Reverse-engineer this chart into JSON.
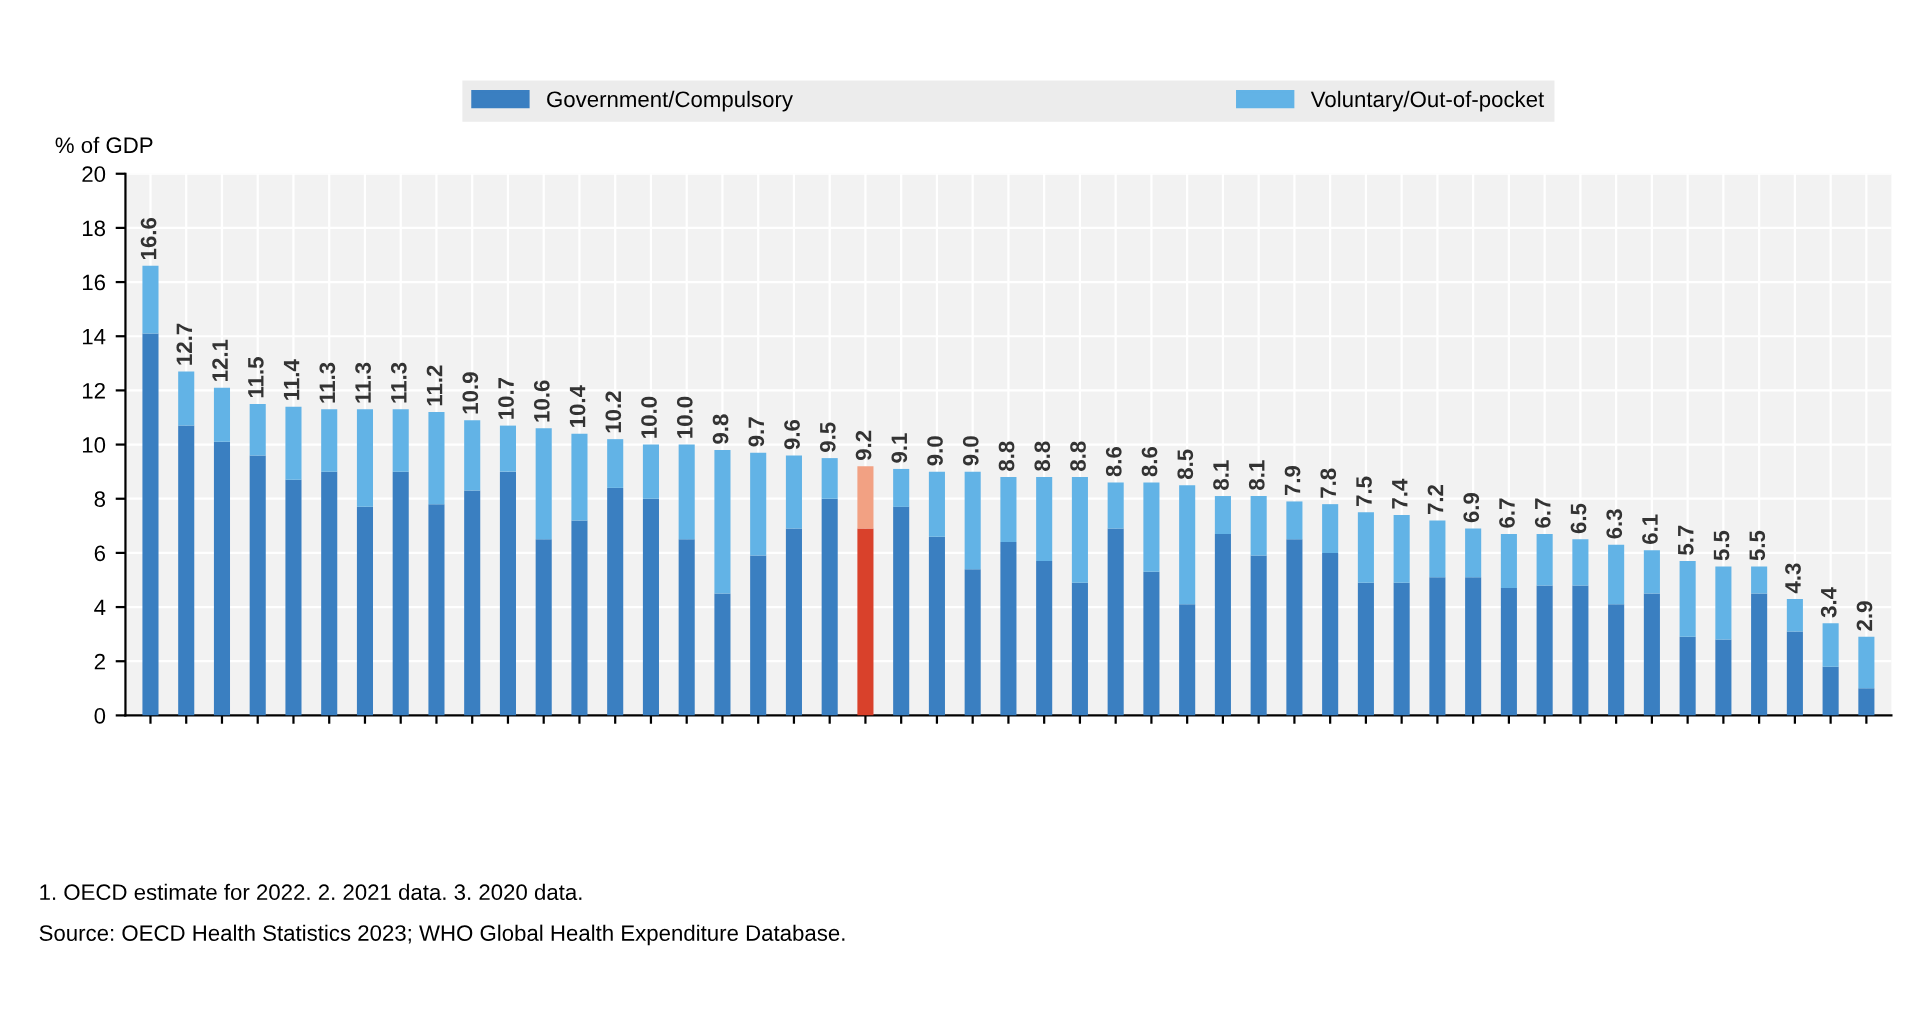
{
  "chart_data": {
    "type": "bar",
    "stacked": true,
    "ylabel": "% of GDP",
    "categories": [
      null,
      null,
      null,
      null,
      null,
      null,
      null,
      null,
      null,
      null,
      null,
      null,
      null,
      null,
      null,
      null,
      null,
      null,
      null,
      null,
      null,
      null,
      null,
      null,
      null,
      null,
      null,
      null,
      null,
      null,
      null,
      null,
      null,
      null,
      null,
      null,
      null,
      null,
      null,
      null,
      null,
      null,
      null,
      null,
      null,
      null,
      null,
      null,
      null
    ],
    "series": [
      {
        "name": "Government/Compulsory",
        "color": "#3a7fc1",
        "colors": [
          "#3a7fc1",
          "#3a7fc1",
          "#3a7fc1",
          "#3a7fc1",
          "#3a7fc1",
          "#3a7fc1",
          "#3a7fc1",
          "#3a7fc1",
          "#3a7fc1",
          "#3a7fc1",
          "#3a7fc1",
          "#3a7fc1",
          "#3a7fc1",
          "#3a7fc1",
          "#3a7fc1",
          "#3a7fc1",
          "#3a7fc1",
          "#3a7fc1",
          "#3a7fc1",
          "#3a7fc1",
          "#d9412b",
          "#3a7fc1",
          "#3a7fc1",
          "#3a7fc1",
          "#3a7fc1",
          "#3a7fc1",
          "#3a7fc1",
          "#3a7fc1",
          "#3a7fc1",
          "#3a7fc1",
          "#3a7fc1",
          "#3a7fc1",
          "#3a7fc1",
          "#3a7fc1",
          "#3a7fc1",
          "#3a7fc1",
          "#3a7fc1",
          "#3a7fc1",
          "#3a7fc1",
          "#3a7fc1",
          "#3a7fc1",
          "#3a7fc1",
          "#3a7fc1",
          "#3a7fc1",
          "#3a7fc1",
          "#3a7fc1",
          "#3a7fc1",
          "#3a7fc1",
          "#3a7fc1"
        ],
        "values": [
          14.1,
          10.7,
          10.1,
          9.6,
          8.7,
          9.0,
          7.7,
          9.0,
          7.8,
          8.3,
          9.0,
          6.5,
          7.2,
          8.4,
          8.0,
          6.5,
          4.5,
          5.9,
          6.9,
          8.0,
          6.9,
          7.7,
          6.6,
          5.4,
          6.4,
          5.7,
          4.9,
          6.9,
          5.3,
          4.1,
          6.7,
          5.9,
          6.5,
          6.0,
          4.9,
          4.9,
          5.1,
          5.1,
          4.7,
          4.8,
          4.8,
          4.1,
          4.5,
          2.9,
          2.8,
          4.5,
          3.1,
          1.8,
          1.0
        ]
      },
      {
        "name": "Voluntary/Out-of-pocket",
        "color": "#62b3e6",
        "colors": [
          "#62b3e6",
          "#62b3e6",
          "#62b3e6",
          "#62b3e6",
          "#62b3e6",
          "#62b3e6",
          "#62b3e6",
          "#62b3e6",
          "#62b3e6",
          "#62b3e6",
          "#62b3e6",
          "#62b3e6",
          "#62b3e6",
          "#62b3e6",
          "#62b3e6",
          "#62b3e6",
          "#62b3e6",
          "#62b3e6",
          "#62b3e6",
          "#62b3e6",
          "#f2a183",
          "#62b3e6",
          "#62b3e6",
          "#62b3e6",
          "#62b3e6",
          "#62b3e6",
          "#62b3e6",
          "#62b3e6",
          "#62b3e6",
          "#62b3e6",
          "#62b3e6",
          "#62b3e6",
          "#62b3e6",
          "#62b3e6",
          "#62b3e6",
          "#62b3e6",
          "#62b3e6",
          "#62b3e6",
          "#62b3e6",
          "#62b3e6",
          "#62b3e6",
          "#62b3e6",
          "#62b3e6",
          "#62b3e6",
          "#62b3e6",
          "#62b3e6",
          "#62b3e6",
          "#62b3e6",
          "#62b3e6"
        ],
        "values": [
          2.5,
          2.0,
          2.0,
          1.9,
          2.7,
          2.3,
          3.6,
          2.3,
          3.4,
          2.6,
          1.7,
          4.1,
          3.2,
          1.8,
          2.0,
          3.5,
          5.3,
          3.8,
          2.7,
          1.5,
          2.3,
          1.4,
          2.4,
          3.6,
          2.4,
          3.1,
          3.9,
          1.7,
          3.3,
          4.4,
          1.4,
          2.2,
          1.4,
          1.8,
          2.6,
          2.5,
          2.1,
          1.8,
          2.0,
          1.9,
          1.7,
          2.2,
          1.6,
          2.8,
          2.7,
          1.0,
          1.2,
          1.6,
          1.9
        ]
      }
    ],
    "totals": [
      "16.6",
      "12.7",
      "12.1",
      "11.5",
      "11.4",
      "11.3",
      "11.3",
      "11.3",
      "11.2",
      "10.9",
      "10.7",
      "10.6",
      "10.4",
      "10.2",
      "10.0",
      "10.0",
      "9.8",
      "9.7",
      "9.6",
      "9.5",
      "9.2",
      "9.1",
      "9.0",
      "9.0",
      "8.8",
      "8.8",
      "8.8",
      "8.6",
      "8.6",
      "8.5",
      "8.1",
      "8.1",
      "7.9",
      "7.8",
      "7.5",
      "7.4",
      "7.2",
      "6.9",
      "6.7",
      "6.7",
      "6.5",
      "6.3",
      "6.1",
      "5.7",
      "5.5",
      "5.5",
      "4.3",
      "3.4",
      "2.9"
    ],
    "ylim": [
      0,
      20
    ],
    "yticks": [
      0,
      2,
      4,
      6,
      8,
      10,
      12,
      14,
      16,
      18,
      20
    ],
    "grid": true,
    "legend": "top",
    "tick_labels": "y",
    "annotations": [
      "1. OECD estimate for 2022. 2. 2021 data. 3. 2020 data.",
      "Source: OECD Health Statistics 2023; WHO Global Health Expenditure Database."
    ]
  }
}
